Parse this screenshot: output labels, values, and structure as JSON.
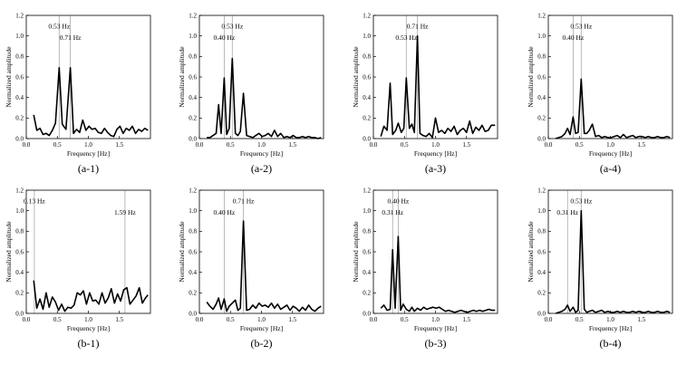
{
  "chart_data": [
    {
      "type": "line",
      "caption": "(a-1)",
      "xlabel": "Frequency [Hz]",
      "ylabel": "Normalized amplitude",
      "xlim": [
        0,
        2
      ],
      "ylim": [
        0,
        1.2
      ],
      "xticks": [
        "0.0",
        "0.5",
        "1.0",
        "1.5"
      ],
      "yticks": [
        "0.0",
        "0.2",
        "0.4",
        "0.6",
        "0.8",
        "1.0",
        "1.2"
      ],
      "peaks": [
        {
          "x": 0.53,
          "label": "0.53 Hz",
          "y": 1.1
        },
        {
          "x": 0.71,
          "label": "0.71 Hz",
          "y": 0.99
        }
      ],
      "x": [
        0.12,
        0.17,
        0.22,
        0.27,
        0.32,
        0.37,
        0.42,
        0.47,
        0.53,
        0.58,
        0.64,
        0.71,
        0.76,
        0.81,
        0.86,
        0.91,
        0.96,
        1.01,
        1.06,
        1.11,
        1.16,
        1.21,
        1.26,
        1.31,
        1.36,
        1.41,
        1.46,
        1.51,
        1.56,
        1.61,
        1.66,
        1.71,
        1.76,
        1.81,
        1.86,
        1.91,
        1.96
      ],
      "y": [
        0.23,
        0.08,
        0.1,
        0.04,
        0.05,
        0.03,
        0.08,
        0.15,
        0.69,
        0.14,
        0.09,
        0.69,
        0.05,
        0.09,
        0.06,
        0.18,
        0.08,
        0.12,
        0.09,
        0.1,
        0.06,
        0.05,
        0.1,
        0.06,
        0.03,
        0.02,
        0.09,
        0.12,
        0.05,
        0.1,
        0.08,
        0.12,
        0.05,
        0.09,
        0.07,
        0.1,
        0.08
      ]
    },
    {
      "type": "line",
      "caption": "(a-2)",
      "xlabel": "Frequency [Hz]",
      "ylabel": "Normalized amplitude",
      "xlim": [
        0,
        2
      ],
      "ylim": [
        0,
        1.2
      ],
      "xticks": [
        "0.0",
        "0.5",
        "1.0",
        "1.5"
      ],
      "yticks": [
        "0.0",
        "0.2",
        "0.4",
        "0.6",
        "0.8",
        "1.0",
        "1.2"
      ],
      "peaks": [
        {
          "x": 0.4,
          "label": "0.40 Hz",
          "y": 0.99
        },
        {
          "x": 0.53,
          "label": "0.53 Hz",
          "y": 1.1
        }
      ],
      "x": [
        0.12,
        0.17,
        0.22,
        0.27,
        0.31,
        0.35,
        0.4,
        0.44,
        0.48,
        0.53,
        0.58,
        0.62,
        0.66,
        0.71,
        0.76,
        0.81,
        0.86,
        0.91,
        0.96,
        1.01,
        1.06,
        1.11,
        1.16,
        1.21,
        1.26,
        1.31,
        1.36,
        1.41,
        1.46,
        1.51,
        1.56,
        1.61,
        1.66,
        1.71,
        1.76,
        1.81,
        1.86,
        1.91,
        1.96
      ],
      "y": [
        0.01,
        0.01,
        0.03,
        0.05,
        0.33,
        0.05,
        0.59,
        0.04,
        0.1,
        0.78,
        0.05,
        0.03,
        0.07,
        0.44,
        0.03,
        0.02,
        0.01,
        0.03,
        0.05,
        0.02,
        0.03,
        0.05,
        0.02,
        0.08,
        0.02,
        0.05,
        0.01,
        0.02,
        0.01,
        0.03,
        0.01,
        0.01,
        0.02,
        0.01,
        0.02,
        0.01,
        0.01,
        0.0,
        0.01
      ]
    },
    {
      "type": "line",
      "caption": "(a-3)",
      "xlabel": "Frequency [Hz]",
      "ylabel": "Normalized amplitude",
      "xlim": [
        0,
        2
      ],
      "ylim": [
        0,
        1.2
      ],
      "xticks": [
        "0.0",
        "0.5",
        "1.0",
        "1.5"
      ],
      "yticks": [
        "0.0",
        "0.2",
        "0.4",
        "0.6",
        "0.8",
        "1.0",
        "1.2"
      ],
      "peaks": [
        {
          "x": 0.53,
          "label": "0.53 Hz",
          "y": 0.99
        },
        {
          "x": 0.71,
          "label": "0.71 Hz",
          "y": 1.1
        }
      ],
      "x": [
        0.12,
        0.17,
        0.22,
        0.27,
        0.31,
        0.36,
        0.4,
        0.45,
        0.49,
        0.53,
        0.58,
        0.62,
        0.66,
        0.71,
        0.75,
        0.8,
        0.85,
        0.9,
        0.95,
        1.0,
        1.05,
        1.1,
        1.15,
        1.2,
        1.25,
        1.3,
        1.35,
        1.4,
        1.45,
        1.5,
        1.55,
        1.6,
        1.65,
        1.7,
        1.75,
        1.8,
        1.85,
        1.9,
        1.96
      ],
      "y": [
        0.02,
        0.12,
        0.08,
        0.54,
        0.04,
        0.08,
        0.15,
        0.06,
        0.1,
        0.59,
        0.1,
        0.14,
        0.06,
        1.0,
        0.05,
        0.03,
        0.02,
        0.05,
        0.01,
        0.2,
        0.06,
        0.08,
        0.05,
        0.1,
        0.07,
        0.12,
        0.04,
        0.08,
        0.1,
        0.06,
        0.17,
        0.05,
        0.11,
        0.08,
        0.13,
        0.07,
        0.08,
        0.13,
        0.13
      ]
    },
    {
      "type": "line",
      "caption": "(a-4)",
      "xlabel": "Frequency [Hz]",
      "ylabel": "Normalized amplitude",
      "xlim": [
        0,
        2
      ],
      "ylim": [
        0,
        1.2
      ],
      "xticks": [
        "0.0",
        "0.5",
        "1.0",
        "1.5"
      ],
      "yticks": [
        "0.0",
        "0.2",
        "0.4",
        "0.6",
        "0.8",
        "1.0",
        "1.2"
      ],
      "peaks": [
        {
          "x": 0.4,
          "label": "0.40 Hz",
          "y": 0.99
        },
        {
          "x": 0.53,
          "label": "0.53 Hz",
          "y": 1.1
        }
      ],
      "x": [
        0.12,
        0.17,
        0.22,
        0.27,
        0.31,
        0.35,
        0.4,
        0.44,
        0.48,
        0.53,
        0.58,
        0.62,
        0.66,
        0.71,
        0.76,
        0.81,
        0.86,
        0.91,
        0.96,
        1.01,
        1.06,
        1.11,
        1.16,
        1.21,
        1.26,
        1.31,
        1.36,
        1.41,
        1.46,
        1.51,
        1.56,
        1.61,
        1.66,
        1.71,
        1.76,
        1.81,
        1.86,
        1.91,
        1.96
      ],
      "y": [
        0.0,
        0.01,
        0.02,
        0.05,
        0.1,
        0.04,
        0.21,
        0.05,
        0.06,
        0.58,
        0.05,
        0.05,
        0.08,
        0.14,
        0.02,
        0.03,
        0.01,
        0.02,
        0.01,
        0.01,
        0.02,
        0.03,
        0.01,
        0.04,
        0.01,
        0.02,
        0.03,
        0.01,
        0.02,
        0.02,
        0.01,
        0.02,
        0.01,
        0.01,
        0.02,
        0.01,
        0.01,
        0.02,
        0.01
      ]
    },
    {
      "type": "line",
      "caption": "(b-1)",
      "xlabel": "Frequency [Hz]",
      "ylabel": "Normalized amplitude",
      "xlim": [
        0,
        2
      ],
      "ylim": [
        0,
        1.2
      ],
      "xticks": [
        "0.0",
        "0.5",
        "1.0",
        "1.5"
      ],
      "yticks": [
        "0.0",
        "0.2",
        "0.4",
        "0.6",
        "0.8",
        "1.0",
        "1.2"
      ],
      "peaks": [
        {
          "x": 0.13,
          "label": "0.13 Hz",
          "y": 1.1
        },
        {
          "x": 1.59,
          "label": "1.59 Hz",
          "y": 0.99
        }
      ],
      "x": [
        0.12,
        0.17,
        0.22,
        0.27,
        0.32,
        0.37,
        0.42,
        0.47,
        0.52,
        0.57,
        0.62,
        0.67,
        0.72,
        0.77,
        0.82,
        0.87,
        0.92,
        0.97,
        1.02,
        1.07,
        1.12,
        1.17,
        1.22,
        1.27,
        1.32,
        1.37,
        1.42,
        1.47,
        1.52,
        1.57,
        1.62,
        1.67,
        1.72,
        1.77,
        1.82,
        1.87,
        1.92,
        1.96
      ],
      "y": [
        0.32,
        0.05,
        0.14,
        0.04,
        0.2,
        0.06,
        0.16,
        0.11,
        0.03,
        0.09,
        0.02,
        0.06,
        0.05,
        0.08,
        0.2,
        0.18,
        0.22,
        0.09,
        0.2,
        0.12,
        0.13,
        0.09,
        0.2,
        0.1,
        0.15,
        0.24,
        0.1,
        0.19,
        0.12,
        0.23,
        0.25,
        0.09,
        0.13,
        0.17,
        0.25,
        0.1,
        0.15,
        0.18
      ]
    },
    {
      "type": "line",
      "caption": "(b-2)",
      "xlabel": "Frequency [Hz]",
      "ylabel": "Normalized amplitude",
      "xlim": [
        0,
        2
      ],
      "ylim": [
        0,
        1.2
      ],
      "xticks": [
        "0.0",
        "0.5",
        "1.0",
        "1.5"
      ],
      "yticks": [
        "0.0",
        "0.2",
        "0.4",
        "0.6",
        "0.8",
        "1.0",
        "1.2"
      ],
      "peaks": [
        {
          "x": 0.4,
          "label": "0.40 Hz",
          "y": 0.99
        },
        {
          "x": 0.71,
          "label": "0.71 Hz",
          "y": 1.1
        }
      ],
      "x": [
        0.12,
        0.17,
        0.22,
        0.27,
        0.31,
        0.35,
        0.4,
        0.44,
        0.48,
        0.53,
        0.58,
        0.62,
        0.66,
        0.71,
        0.76,
        0.81,
        0.86,
        0.91,
        0.96,
        1.01,
        1.06,
        1.11,
        1.16,
        1.21,
        1.26,
        1.31,
        1.36,
        1.41,
        1.46,
        1.51,
        1.56,
        1.61,
        1.66,
        1.71,
        1.76,
        1.81,
        1.86,
        1.91,
        1.96
      ],
      "y": [
        0.11,
        0.07,
        0.04,
        0.09,
        0.15,
        0.04,
        0.14,
        0.02,
        0.07,
        0.1,
        0.13,
        0.03,
        0.05,
        0.9,
        0.03,
        0.04,
        0.08,
        0.05,
        0.1,
        0.07,
        0.08,
        0.06,
        0.1,
        0.05,
        0.09,
        0.04,
        0.06,
        0.08,
        0.03,
        0.07,
        0.05,
        0.02,
        0.06,
        0.03,
        0.08,
        0.04,
        0.02,
        0.05,
        0.07
      ]
    },
    {
      "type": "line",
      "caption": "(b-3)",
      "xlabel": "Frequency [Hz]",
      "ylabel": "Normalized amplitude",
      "xlim": [
        0,
        2
      ],
      "ylim": [
        0,
        1.2
      ],
      "xticks": [
        "0.0",
        "0.5",
        "1.0",
        "1.5"
      ],
      "yticks": [
        "0.0",
        "0.2",
        "0.4",
        "0.6",
        "0.8",
        "1.0",
        "1.2"
      ],
      "peaks": [
        {
          "x": 0.31,
          "label": "0.31 Hz",
          "y": 0.99
        },
        {
          "x": 0.4,
          "label": "0.40 Hz",
          "y": 1.1
        }
      ],
      "x": [
        0.12,
        0.17,
        0.22,
        0.27,
        0.31,
        0.35,
        0.4,
        0.44,
        0.48,
        0.53,
        0.58,
        0.62,
        0.66,
        0.71,
        0.76,
        0.81,
        0.86,
        0.91,
        0.96,
        1.01,
        1.06,
        1.11,
        1.16,
        1.21,
        1.26,
        1.31,
        1.36,
        1.41,
        1.46,
        1.51,
        1.56,
        1.61,
        1.66,
        1.71,
        1.76,
        1.81,
        1.86,
        1.91,
        1.96
      ],
      "y": [
        0.05,
        0.08,
        0.03,
        0.04,
        0.62,
        0.05,
        0.75,
        0.03,
        0.09,
        0.04,
        0.02,
        0.06,
        0.02,
        0.05,
        0.03,
        0.06,
        0.04,
        0.05,
        0.06,
        0.05,
        0.06,
        0.04,
        0.02,
        0.03,
        0.02,
        0.01,
        0.02,
        0.03,
        0.02,
        0.01,
        0.02,
        0.03,
        0.02,
        0.03,
        0.02,
        0.03,
        0.04,
        0.03,
        0.03
      ]
    },
    {
      "type": "line",
      "caption": "(b-4)",
      "xlabel": "Frequency [Hz]",
      "ylabel": "Normalized amplitude",
      "xlim": [
        0,
        2
      ],
      "ylim": [
        0,
        1.2
      ],
      "xticks": [
        "0.0",
        "0.5",
        "1.0",
        "1.5"
      ],
      "yticks": [
        "0.0",
        "0.2",
        "0.4",
        "0.6",
        "0.8",
        "1.0",
        "1.2"
      ],
      "peaks": [
        {
          "x": 0.31,
          "label": "0.31 Hz",
          "y": 0.99
        },
        {
          "x": 0.53,
          "label": "0.53 Hz",
          "y": 1.1
        }
      ],
      "x": [
        0.12,
        0.17,
        0.22,
        0.27,
        0.31,
        0.35,
        0.4,
        0.44,
        0.48,
        0.53,
        0.58,
        0.62,
        0.66,
        0.71,
        0.76,
        0.81,
        0.86,
        0.91,
        0.96,
        1.01,
        1.06,
        1.11,
        1.16,
        1.21,
        1.26,
        1.31,
        1.36,
        1.41,
        1.46,
        1.51,
        1.56,
        1.61,
        1.66,
        1.71,
        1.76,
        1.81,
        1.86,
        1.91,
        1.96
      ],
      "y": [
        0.0,
        0.01,
        0.02,
        0.04,
        0.08,
        0.02,
        0.06,
        0.01,
        0.03,
        1.0,
        0.04,
        0.01,
        0.02,
        0.03,
        0.01,
        0.02,
        0.03,
        0.01,
        0.02,
        0.01,
        0.01,
        0.02,
        0.01,
        0.02,
        0.01,
        0.01,
        0.02,
        0.01,
        0.02,
        0.01,
        0.01,
        0.02,
        0.01,
        0.01,
        0.02,
        0.01,
        0.01,
        0.02,
        0.01
      ]
    }
  ]
}
